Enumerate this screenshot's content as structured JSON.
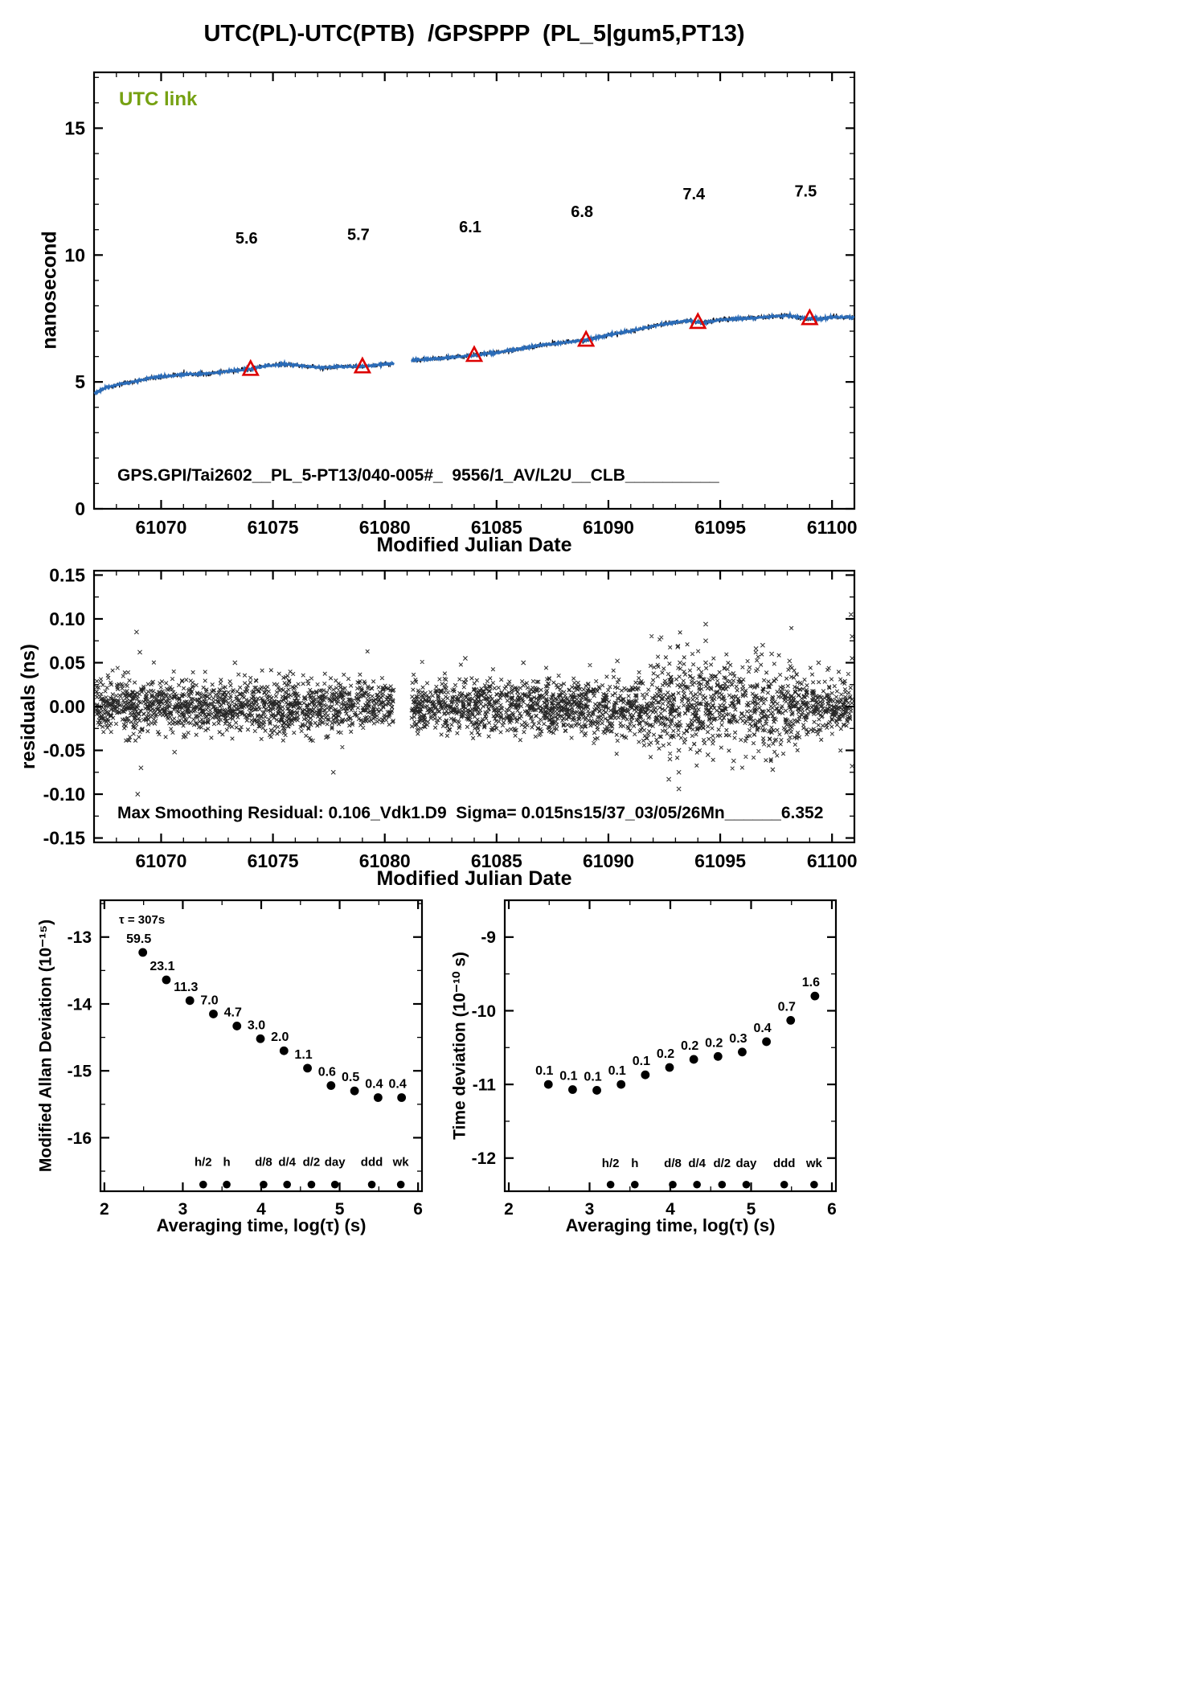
{
  "title": "UTC(PL)-UTC(PTB)  /GPSPPP  (PL_5|gum5,PT13)",
  "colors": {
    "accent_red": "#dd0000",
    "line_blue": "#2b6cb8",
    "line_dark": "#0a0a14",
    "utc_green": "#76a112",
    "axis_black": "#000000",
    "background": "#ffffff"
  },
  "chart_data": [
    {
      "id": "utc-link-chart",
      "type": "line",
      "corner_label": "UTC link",
      "ylabel": "nanosecond",
      "xlabel": "Modified Julian Date",
      "inner_label": "GPS.GPI/Tai2602__PL_5-PT13/040-005#_  9556/1_AV/L2U__CLB__________",
      "xlim": [
        61067,
        61101
      ],
      "ylim": [
        0,
        17.2
      ],
      "xtick_vals": [
        61070,
        61075,
        61080,
        61085,
        61090,
        61095,
        61100
      ],
      "xtick_labels": [
        "61070",
        "61075",
        "61080",
        "61085",
        "61090",
        "61095",
        "61100"
      ],
      "ytick_vals": [
        0,
        5,
        10,
        15
      ],
      "ytick_labels": [
        "0",
        "5",
        "10",
        "15"
      ],
      "x_minor_step": 1,
      "y_minor_step": 1,
      "gap": [
        61080.4,
        61081.2
      ],
      "series": [
        {
          "name": "UTC(PL)-UTC(PTB) segment 1",
          "points": [
            [
              61067,
              4.55
            ],
            [
              61067.6,
              4.8
            ],
            [
              61068.2,
              4.92
            ],
            [
              61069,
              5.05
            ],
            [
              61069.6,
              5.18
            ],
            [
              61070.3,
              5.22
            ],
            [
              61071,
              5.3
            ],
            [
              61072,
              5.32
            ],
            [
              61073,
              5.42
            ],
            [
              61074,
              5.5
            ],
            [
              61074.8,
              5.65
            ],
            [
              61075.6,
              5.7
            ],
            [
              61076.4,
              5.62
            ],
            [
              61077.2,
              5.56
            ],
            [
              61078,
              5.6
            ],
            [
              61079,
              5.6
            ],
            [
              61079.8,
              5.68
            ],
            [
              61080.4,
              5.72
            ]
          ]
        },
        {
          "name": "UTC(PL)-UTC(PTB) segment 2",
          "points": [
            [
              61081.2,
              5.85
            ],
            [
              61082,
              5.9
            ],
            [
              61083,
              5.97
            ],
            [
              61084,
              6.05
            ],
            [
              61085,
              6.15
            ],
            [
              61086,
              6.3
            ],
            [
              61087,
              6.45
            ],
            [
              61088,
              6.55
            ],
            [
              61089,
              6.65
            ],
            [
              61090,
              6.85
            ],
            [
              61091,
              7.0
            ],
            [
              61092,
              7.2
            ],
            [
              61092.8,
              7.32
            ],
            [
              61093.6,
              7.42
            ],
            [
              61094.2,
              7.33
            ],
            [
              61095,
              7.45
            ],
            [
              61096,
              7.5
            ],
            [
              61097,
              7.55
            ],
            [
              61098,
              7.62
            ],
            [
              61098.8,
              7.5
            ],
            [
              61099.4,
              7.48
            ],
            [
              61100,
              7.55
            ],
            [
              61101,
              7.55
            ]
          ]
        }
      ],
      "calibration_points": [
        {
          "x": 61074,
          "y": 5.5,
          "label": "5.6",
          "label_y": 10.45
        },
        {
          "x": 61079,
          "y": 5.6,
          "label": "5.7",
          "label_y": 10.6
        },
        {
          "x": 61084,
          "y": 6.05,
          "label": "6.1",
          "label_y": 10.9
        },
        {
          "x": 61089,
          "y": 6.65,
          "label": "6.8",
          "label_y": 11.5
        },
        {
          "x": 61094,
          "y": 7.35,
          "label": "7.4",
          "label_y": 12.2
        },
        {
          "x": 61099,
          "y": 7.5,
          "label": "7.5",
          "label_y": 12.3
        }
      ]
    },
    {
      "id": "residuals-chart",
      "type": "scatter",
      "marker": "x",
      "ylabel": "residuals (ns)",
      "xlabel": "Modified Julian Date",
      "inner_label": "Max Smoothing Residual: 0.106_Vdk1.D9  Sigma= 0.015ns15/37_03/05/26Mn______6.352",
      "xlim": [
        61067,
        61101
      ],
      "ylim": [
        -0.155,
        0.155
      ],
      "xtick_vals": [
        61070,
        61075,
        61080,
        61085,
        61090,
        61095,
        61100
      ],
      "xtick_labels": [
        "61070",
        "61075",
        "61080",
        "61085",
        "61090",
        "61095",
        "61100"
      ],
      "ytick_vals": [
        0.15,
        0.1,
        0.05,
        0,
        -0.05,
        -0.1,
        -0.15
      ],
      "ytick_labels": [
        "0.15",
        "0.10",
        "0.05",
        "0.00",
        "-0.05",
        "-0.10",
        "-0.15"
      ],
      "x_minor_step": 1,
      "y_minor_step": 0.025,
      "gap": [
        61080.4,
        61081.2
      ],
      "noise_sigma": 0.015,
      "noisy_region": {
        "start": 61091.3,
        "end": 61098.6,
        "sigma": 0.026
      },
      "n_points": 3600,
      "outliers": [
        [
          61068.9,
          0.085
        ],
        [
          61068.95,
          -0.1
        ],
        [
          61069.05,
          0.062
        ],
        [
          61069.1,
          -0.07
        ],
        [
          61070.6,
          -0.052
        ],
        [
          61073.3,
          0.05
        ],
        [
          61077.7,
          -0.075
        ],
        [
          61083.6,
          0.055
        ],
        [
          61086.2,
          0.05
        ],
        [
          61090.4,
          0.052
        ],
        [
          61092.7,
          -0.083
        ],
        [
          61092.75,
          -0.06
        ],
        [
          61093.1,
          0.068
        ],
        [
          61093.15,
          -0.094
        ],
        [
          61093.15,
          -0.075
        ],
        [
          61093.15,
          -0.05
        ],
        [
          61093.2,
          0.05
        ],
        [
          61094.35,
          0.094
        ],
        [
          61094.35,
          0.075
        ],
        [
          61094.35,
          0.05
        ],
        [
          61094.45,
          -0.055
        ],
        [
          61095.6,
          -0.062
        ],
        [
          61096.6,
          0.066
        ],
        [
          61096.9,
          0.07
        ],
        [
          61097.3,
          0.06
        ],
        [
          61097.35,
          -0.072
        ],
        [
          61098.1,
          0.052
        ],
        [
          61099.4,
          0.05
        ],
        [
          61100.85,
          0.105
        ],
        [
          61100.9,
          0.08
        ],
        [
          61100.9,
          0.055
        ],
        [
          61100.9,
          -0.068
        ]
      ]
    },
    {
      "id": "mdev-chart",
      "type": "scatter",
      "ylabel": "Modified Allan Deviation (10⁻¹⁵)",
      "xlabel": "Averaging time, log(τ) (s)",
      "tau_label": "τ = 307s",
      "xlim": [
        1.95,
        6.05
      ],
      "ylim": [
        -16.8,
        -12.45
      ],
      "xtick_vals": [
        2,
        3,
        4,
        5,
        6
      ],
      "xtick_labels": [
        "2",
        "3",
        "4",
        "5",
        "6"
      ],
      "ytick_vals": [
        -13,
        -14,
        -15,
        -16
      ],
      "ytick_labels": [
        "-13",
        "-14",
        "-15",
        "-16"
      ],
      "x_minor_step": 0.5,
      "y_minor_step": 0.5,
      "x": [
        2.49,
        2.79,
        3.09,
        3.39,
        3.69,
        3.99,
        4.29,
        4.59,
        4.89,
        5.19,
        5.49,
        5.79
      ],
      "y": [
        -13.23,
        -13.64,
        -13.95,
        -14.15,
        -14.33,
        -14.52,
        -14.7,
        -14.96,
        -15.22,
        -15.3,
        -15.4,
        -15.4
      ],
      "point_labels": [
        "59.5",
        "23.1",
        "11.3",
        "7.0",
        "4.7",
        "3.0",
        "2.0",
        "1.1",
        "0.6",
        "0.5",
        "0.4",
        "0.4"
      ],
      "time_markers": {
        "labels": [
          "h/2",
          "h",
          "d/8",
          "d/4",
          "d/2",
          "day",
          "ddd",
          "wk"
        ],
        "x": [
          3.26,
          3.56,
          4.03,
          4.33,
          4.64,
          4.94,
          5.41,
          5.78
        ],
        "marker_y": -16.7,
        "label_y": -16.42
      }
    },
    {
      "id": "tdev-chart",
      "type": "scatter",
      "ylabel": "Time deviation (10⁻¹⁰ s)",
      "xlabel": "Averaging time, log(τ) (s)",
      "xlim": [
        1.95,
        6.05
      ],
      "ylim": [
        -12.45,
        -8.5
      ],
      "xtick_vals": [
        2,
        3,
        4,
        5,
        6
      ],
      "xtick_labels": [
        "2",
        "3",
        "4",
        "5",
        "6"
      ],
      "ytick_vals": [
        -9,
        -10,
        -11,
        -12
      ],
      "ytick_labels": [
        "-9",
        "-10",
        "-11",
        "-12"
      ],
      "x_minor_step": 0.5,
      "y_minor_step": 0.5,
      "x": [
        2.49,
        2.79,
        3.09,
        3.39,
        3.69,
        3.99,
        4.29,
        4.59,
        4.89,
        5.19,
        5.49,
        5.79
      ],
      "y": [
        -11.0,
        -11.07,
        -11.08,
        -11.0,
        -10.87,
        -10.77,
        -10.66,
        -10.62,
        -10.56,
        -10.42,
        -10.13,
        -9.8
      ],
      "point_labels": [
        "0.1",
        "0.1",
        "0.1",
        "0.1",
        "0.1",
        "0.2",
        "0.2",
        "0.2",
        "0.3",
        "0.4",
        "0.7",
        "1.6"
      ],
      "time_markers": {
        "labels": [
          "h/2",
          "h",
          "d/8",
          "d/4",
          "d/2",
          "day",
          "ddd",
          "wk"
        ],
        "x": [
          3.26,
          3.56,
          4.03,
          4.33,
          4.64,
          4.94,
          5.41,
          5.78
        ],
        "marker_y": -12.36,
        "label_y": -12.12
      }
    }
  ]
}
